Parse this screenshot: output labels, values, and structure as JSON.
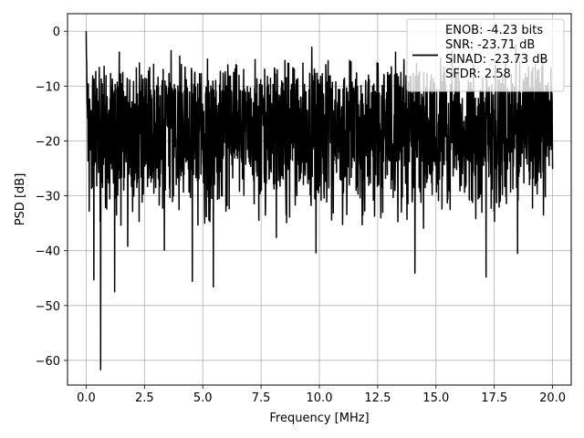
{
  "chart_data": {
    "type": "line",
    "title": "",
    "xlabel": "Frequency [MHz]",
    "ylabel": "PSD [dB]",
    "xlim": [
      -0.8,
      20.8
    ],
    "ylim": [
      -64.5,
      3.2
    ],
    "xticks": [
      0.0,
      2.5,
      5.0,
      7.5,
      10.0,
      12.5,
      15.0,
      17.5,
      20.0
    ],
    "xtick_labels": [
      "0.0",
      "2.5",
      "5.0",
      "7.5",
      "10.0",
      "12.5",
      "15.0",
      "17.5",
      "20.0"
    ],
    "yticks": [
      0,
      -10,
      -20,
      -30,
      -40,
      -50,
      -60
    ],
    "ytick_labels": [
      "0",
      "−10",
      "−20",
      "−30",
      "−40",
      "−50",
      "−60"
    ],
    "grid": true,
    "legend_position": "upper right",
    "line_color": "#000000",
    "series": [
      {
        "name_lines": [
          "ENOB: -4.23 bits",
          "SNR: -23.71 dB",
          "SINAD: -23.73 dB",
          "SFDR: 2.58"
        ],
        "x_range": [
          0.0,
          20.0
        ],
        "envelope": {
          "top_typical": -8,
          "bottom_typical": -30,
          "max": -2.5,
          "start_peak": 0
        },
        "notable_dips": [
          {
            "x": 0.33,
            "y": -45.3
          },
          {
            "x": 0.62,
            "y": -61.7
          },
          {
            "x": 1.22,
            "y": -47.5
          },
          {
            "x": 1.78,
            "y": -39.2
          },
          {
            "x": 3.35,
            "y": -39.9
          },
          {
            "x": 4.55,
            "y": -45.6
          },
          {
            "x": 5.45,
            "y": -46.6
          },
          {
            "x": 8.15,
            "y": -37.6
          },
          {
            "x": 9.85,
            "y": -40.4
          },
          {
            "x": 14.1,
            "y": -44.1
          },
          {
            "x": 17.15,
            "y": -44.8
          },
          {
            "x": 18.5,
            "y": -40.5
          }
        ]
      }
    ]
  }
}
